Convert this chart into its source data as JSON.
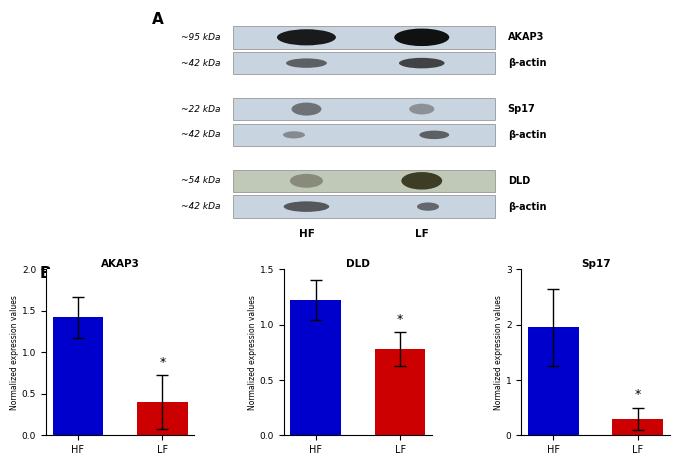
{
  "panel_A_label": "A",
  "panel_B_label": "B",
  "hf_label": "HF",
  "lf_label": "LF",
  "bar_charts": [
    {
      "title": "AKAP3",
      "hf_value": 1.42,
      "lf_value": 0.4,
      "hf_err": 0.25,
      "lf_err": 0.32,
      "ylim": [
        0,
        2.0
      ],
      "yticks": [
        0.0,
        0.5,
        1.0,
        1.5,
        2.0
      ]
    },
    {
      "title": "DLD",
      "hf_value": 1.22,
      "lf_value": 0.78,
      "hf_err": 0.18,
      "lf_err": 0.15,
      "ylim": [
        0,
        1.5
      ],
      "yticks": [
        0.0,
        0.5,
        1.0,
        1.5
      ]
    },
    {
      "title": "Sp17",
      "hf_value": 1.95,
      "lf_value": 0.3,
      "hf_err": 0.7,
      "lf_err": 0.2,
      "ylim": [
        0,
        3.0
      ],
      "yticks": [
        0,
        1,
        2,
        3
      ]
    }
  ],
  "bar_colors": [
    "#0000cc",
    "#cc0000"
  ],
  "ylabel": "Normalized expression values",
  "background_color": "#ffffff",
  "wb_bg_color": "#c8d4e0",
  "wb_bg_color_dld": "#c0c8b8"
}
